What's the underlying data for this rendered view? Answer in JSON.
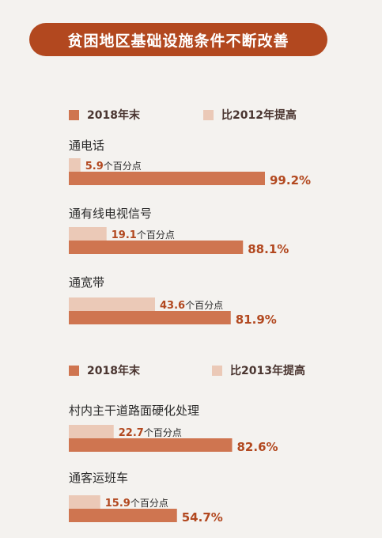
{
  "title": "贫困地区基础设施条件不断改善",
  "colors": {
    "main": "#cf7550",
    "diff": "#ebc9b7",
    "accent": "#b2481f"
  },
  "unit_text": "个百分点",
  "chart_data": [
    {
      "type": "bar",
      "orientation": "horizontal",
      "legend": [
        "2018年末",
        "比2012年提高"
      ],
      "categories": [
        "通电话",
        "通有线电视信号",
        "通宽带"
      ],
      "series": [
        {
          "name": "2018年末",
          "values": [
            99.2,
            88.1,
            81.9
          ],
          "labels": [
            "99.2%",
            "88.1%",
            "81.9%"
          ]
        },
        {
          "name": "比2012年提高",
          "values": [
            5.9,
            19.1,
            43.6
          ],
          "labels": [
            "5.9",
            "19.1",
            "43.6"
          ]
        }
      ]
    },
    {
      "type": "bar",
      "orientation": "horizontal",
      "legend": [
        "2018年末",
        "比2013年提高"
      ],
      "categories": [
        "村内主干道路面硬化处理",
        "通客运班车"
      ],
      "series": [
        {
          "name": "2018年末",
          "values": [
            82.6,
            54.7
          ],
          "labels": [
            "82.6%",
            "54.7%"
          ]
        },
        {
          "name": "比2013年提高",
          "values": [
            22.7,
            15.9
          ],
          "labels": [
            "22.7",
            "15.9"
          ]
        }
      ]
    }
  ]
}
